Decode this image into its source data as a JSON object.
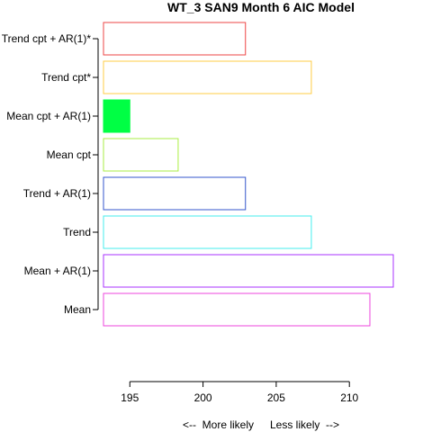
{
  "chart_data": {
    "type": "bar",
    "orientation": "horizontal",
    "title": "WT_3 SAN9 Month 6 AIC Model",
    "categories": [
      "Mean",
      "Mean + AR(1)",
      "Trend",
      "Trend + AR(1)",
      "Mean cpt",
      "Mean cpt + AR(1)",
      "Trend cpt*",
      "Trend cpt + AR(1)*"
    ],
    "values": [
      211.4,
      213.0,
      207.4,
      202.9,
      198.3,
      195.0,
      207.4,
      202.9
    ],
    "colors": [
      "#ee44dd",
      "#aa33ff",
      "#44eeee",
      "#3355cc",
      "#aaee44",
      "#00ff44",
      "#ffcc44",
      "#ee4444"
    ],
    "filled": [
      false,
      false,
      false,
      false,
      false,
      true,
      false,
      false
    ],
    "xlim": [
      193.2,
      213.0
    ],
    "x_ticks": [
      195,
      200,
      205,
      210
    ],
    "xlabel_left": "<--  More likely",
    "xlabel_right": "Less likely  -->",
    "grid": false
  }
}
